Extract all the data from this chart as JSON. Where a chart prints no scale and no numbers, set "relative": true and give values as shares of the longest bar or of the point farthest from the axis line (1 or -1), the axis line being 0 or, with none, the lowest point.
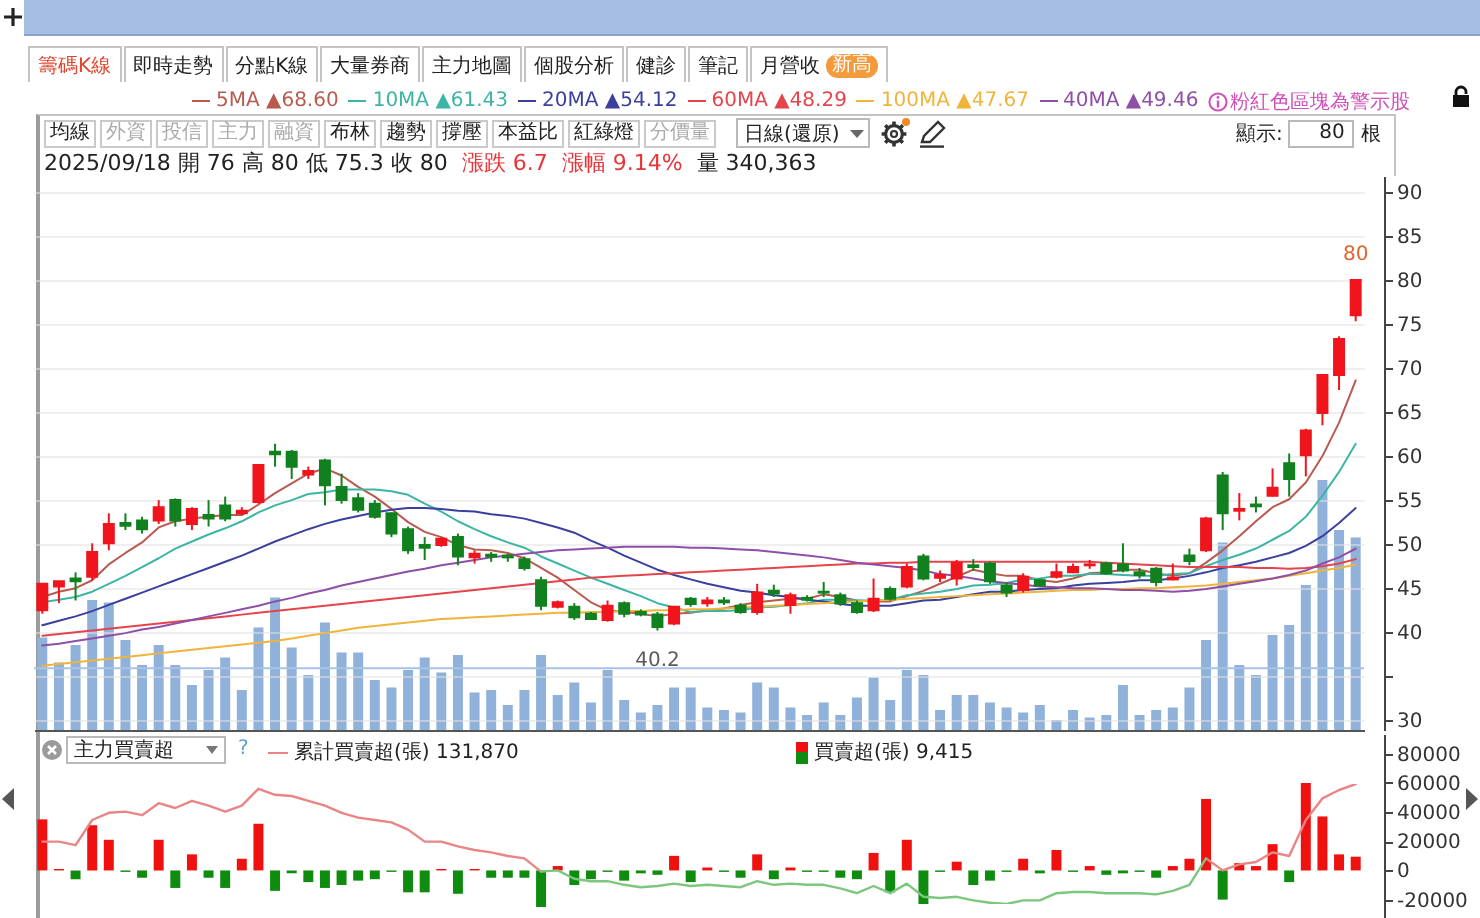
{
  "chart_data": [
    {
      "type": "other",
      "annotations": [
        "籌碼K線",
        "即時走勢",
        "分點K線",
        "大量券商",
        "主力地圖",
        "個股分析",
        "健診",
        "筆記",
        "月營收",
        "新高",
        "均線",
        "外資",
        "投信",
        "主力",
        "融資",
        "布林",
        "趨勢",
        "撐壓",
        "本益比",
        "紅綠燈",
        "分價量",
        "日線(還原)",
        "顯示:",
        "80",
        "根"
      ]
    },
    {
      "type": "candlestick",
      "categories": [
        null,
        null,
        null,
        null,
        null,
        null,
        null,
        null,
        null,
        null,
        null,
        null,
        null,
        null,
        null,
        null,
        null,
        null,
        null,
        null,
        null,
        null,
        null,
        null,
        null,
        null,
        null,
        null,
        null,
        null,
        null,
        null,
        null,
        null,
        null,
        null,
        null,
        null,
        null,
        null,
        null,
        null,
        null,
        null,
        null,
        null,
        null,
        null,
        null,
        null,
        null,
        null,
        null,
        null,
        null,
        null,
        null,
        null,
        null,
        null,
        null,
        null,
        null,
        null,
        null,
        null,
        null,
        null,
        null,
        null,
        null,
        null,
        null,
        null,
        null,
        null,
        null,
        null,
        null,
        null
      ],
      "ohlc": [
        [
          42.5,
          45.6,
          42.1,
          45.5
        ],
        [
          45.2,
          45.8,
          43.3,
          45.8
        ],
        [
          46.1,
          46.8,
          43.6,
          45.8
        ],
        [
          46.3,
          50.1,
          45.9,
          49.1
        ],
        [
          50.1,
          53.5,
          49.3,
          52.3
        ],
        [
          52.4,
          53.5,
          51.6,
          52.1
        ],
        [
          52.7,
          53.1,
          51.2,
          51.7
        ],
        [
          52.7,
          55.0,
          52.3,
          54.2
        ],
        [
          55.0,
          55.2,
          52.0,
          52.7
        ],
        [
          52.3,
          54.2,
          51.6,
          54.0
        ],
        [
          53.3,
          55.0,
          52.0,
          52.9
        ],
        [
          54.4,
          55.4,
          52.6,
          52.9
        ],
        [
          53.5,
          54.2,
          53.3,
          53.8
        ],
        [
          54.8,
          59.0,
          54.6,
          59.0
        ],
        [
          60.5,
          61.4,
          58.8,
          60.2
        ],
        [
          60.5,
          60.7,
          57.4,
          58.8
        ],
        [
          57.9,
          58.8,
          57.4,
          58.3
        ],
        [
          59.5,
          59.7,
          54.4,
          56.7
        ],
        [
          56.5,
          58.0,
          54.6,
          55.0
        ],
        [
          55.2,
          55.8,
          53.6,
          53.9
        ],
        [
          54.6,
          55.0,
          52.9,
          53.1
        ],
        [
          53.5,
          53.6,
          50.8,
          51.2
        ],
        [
          51.7,
          52.0,
          48.9,
          49.3
        ],
        [
          49.9,
          50.8,
          48.2,
          49.6
        ],
        [
          49.9,
          50.8,
          49.7,
          50.6
        ],
        [
          50.8,
          51.2,
          47.6,
          48.6
        ],
        [
          48.5,
          49.3,
          47.8,
          48.9
        ],
        [
          48.8,
          49.1,
          48.0,
          48.6
        ],
        [
          48.7,
          48.9,
          48.0,
          48.5
        ],
        [
          48.3,
          48.6,
          47.0,
          47.3
        ],
        [
          45.9,
          46.3,
          42.5,
          43.0
        ],
        [
          42.9,
          43.6,
          42.7,
          43.4
        ],
        [
          42.9,
          43.3,
          41.4,
          41.7
        ],
        [
          42.1,
          42.3,
          41.4,
          41.5
        ],
        [
          41.4,
          43.6,
          41.2,
          43.0
        ],
        [
          43.3,
          43.5,
          41.7,
          42.1
        ],
        [
          42.3,
          42.6,
          41.8,
          42.0
        ],
        [
          42.0,
          42.3,
          40.2,
          40.6
        ],
        [
          41.0,
          43.0,
          40.8,
          42.9
        ],
        [
          43.8,
          44.0,
          42.9,
          43.2
        ],
        [
          43.3,
          44.0,
          42.9,
          43.6
        ],
        [
          43.6,
          44.0,
          43.1,
          43.4
        ],
        [
          43.0,
          43.3,
          42.1,
          42.3
        ],
        [
          42.3,
          45.5,
          42.0,
          44.5
        ],
        [
          44.7,
          45.4,
          44.0,
          44.4
        ],
        [
          43.1,
          44.5,
          42.1,
          44.2
        ],
        [
          43.9,
          44.2,
          43.5,
          43.7
        ],
        [
          44.6,
          45.7,
          44.0,
          44.5
        ],
        [
          44.2,
          44.5,
          43.0,
          43.3
        ],
        [
          43.3,
          43.6,
          42.1,
          42.3
        ],
        [
          42.5,
          46.1,
          42.3,
          43.8
        ],
        [
          44.9,
          45.2,
          43.6,
          43.8
        ],
        [
          45.2,
          47.8,
          45.0,
          47.4
        ],
        [
          48.6,
          48.9,
          45.9,
          46.1
        ],
        [
          46.2,
          47.0,
          45.7,
          46.5
        ],
        [
          46.1,
          48.2,
          45.3,
          47.9
        ],
        [
          47.6,
          48.3,
          47.0,
          47.4
        ],
        [
          47.8,
          48.0,
          45.5,
          45.8
        ],
        [
          45.3,
          45.7,
          44.0,
          44.5
        ],
        [
          44.8,
          46.7,
          44.5,
          46.3
        ],
        [
          45.9,
          46.1,
          45.2,
          45.3
        ],
        [
          46.3,
          47.8,
          46.1,
          46.8
        ],
        [
          46.8,
          47.8,
          46.7,
          47.4
        ],
        [
          47.6,
          48.2,
          47.2,
          47.7
        ],
        [
          47.8,
          48.0,
          46.5,
          46.7
        ],
        [
          47.7,
          50.1,
          46.8,
          47.0
        ],
        [
          46.8,
          47.3,
          46.1,
          46.5
        ],
        [
          47.2,
          47.4,
          45.2,
          45.7
        ],
        [
          46.0,
          47.8,
          45.9,
          46.2
        ],
        [
          48.7,
          49.5,
          47.6,
          48.1
        ],
        [
          49.3,
          53.1,
          49.1,
          52.9
        ],
        [
          57.8,
          58.2,
          51.6,
          53.5
        ],
        [
          53.8,
          55.8,
          52.7,
          54.0
        ],
        [
          54.5,
          55.4,
          53.6,
          54.3
        ],
        [
          55.5,
          58.6,
          55.4,
          56.4
        ],
        [
          59.2,
          60.3,
          55.4,
          57.4
        ],
        [
          60.1,
          63.1,
          57.7,
          62.9
        ],
        [
          64.9,
          69.2,
          63.5,
          69.2
        ],
        [
          69.2,
          73.6,
          67.5,
          73.3
        ],
        [
          76,
          80,
          75.3,
          80
        ]
      ],
      "colors": [
        "#f0141c",
        "#f0141c",
        "#11801f",
        "#f0141c",
        "#f0141c",
        "#11801f",
        "#11801f",
        "#f0141c",
        "#11801f",
        "#f0141c",
        "#11801f",
        "#11801f",
        "#f0141c",
        "#f0141c",
        "#11801f",
        "#11801f",
        "#f0141c",
        "#11801f",
        "#11801f",
        "#11801f",
        "#11801f",
        "#11801f",
        "#11801f",
        "#11801f",
        "#f0141c",
        "#11801f",
        "#f0141c",
        "#11801f",
        "#11801f",
        "#11801f",
        "#11801f",
        "#f0141c",
        "#11801f",
        "#11801f",
        "#f0141c",
        "#11801f",
        "#11801f",
        "#11801f",
        "#f0141c",
        "#11801f",
        "#f0141c",
        "#11801f",
        "#11801f",
        "#f0141c",
        "#11801f",
        "#f0141c",
        "#11801f",
        "#11801f",
        "#11801f",
        "#11801f",
        "#f0141c",
        "#11801f",
        "#f0141c",
        "#11801f",
        "#f0141c",
        "#f0141c",
        "#11801f",
        "#11801f",
        "#11801f",
        "#f0141c",
        "#11801f",
        "#f0141c",
        "#f0141c",
        "#f0141c",
        "#11801f",
        "#11801f",
        "#11801f",
        "#11801f",
        "#f0141c",
        "#11801f",
        "#f0141c",
        "#11801f",
        "#f0141c",
        "#11801f",
        "#f0141c",
        "#11801f",
        "#f0141c",
        "#f0141c",
        "#f0141c",
        "#f0141c"
      ],
      "series": [
        {
          "name": "5MA ▲68.60",
          "type": "line",
          "color": "#b95a4f",
          "values": [
            44.0,
            44.6,
            45.0,
            45.9,
            47.7,
            49.0,
            50.2,
            51.9,
            52.6,
            52.9,
            53.1,
            53.3,
            53.3,
            54.5,
            55.8,
            56.9,
            58.0,
            58.6,
            57.8,
            56.5,
            55.4,
            54.0,
            52.5,
            51.4,
            50.8,
            49.9,
            49.4,
            49.3,
            49.0,
            48.4,
            47.3,
            46.2,
            44.8,
            43.4,
            42.5,
            42.3,
            42.1,
            41.8,
            42.1,
            42.2,
            42.5,
            42.7,
            43.1,
            43.4,
            43.6,
            43.8,
            43.8,
            44.3,
            44.0,
            43.6,
            43.5,
            43.5,
            44.1,
            44.7,
            45.5,
            46.3,
            47.1,
            46.7,
            46.4,
            46.4,
            45.9,
            45.7,
            46.1,
            46.7,
            46.8,
            47.1,
            47.1,
            46.7,
            46.4,
            46.7,
            47.9,
            49.3,
            50.9,
            52.6,
            54.2,
            55.1,
            57.0,
            60.0,
            63.8,
            68.6
          ]
        },
        {
          "name": "10MA ▲61.43",
          "type": "line",
          "color": "#3db5a5",
          "values": [
            43.4,
            43.7,
            44.0,
            44.6,
            45.5,
            46.4,
            47.4,
            48.4,
            49.5,
            50.3,
            51.1,
            51.8,
            52.6,
            53.6,
            54.4,
            55.0,
            55.7,
            55.9,
            56.2,
            56.2,
            56.2,
            56.0,
            55.6,
            54.6,
            53.7,
            52.6,
            51.7,
            50.9,
            50.2,
            49.6,
            48.6,
            47.8,
            47.0,
            46.2,
            45.5,
            44.8,
            44.1,
            43.3,
            42.8,
            42.3,
            42.4,
            42.4,
            42.5,
            42.8,
            42.9,
            43.1,
            43.3,
            43.7,
            43.7,
            43.6,
            43.6,
            43.7,
            44.2,
            44.4,
            44.6,
            44.9,
            45.3,
            45.4,
            45.6,
            46.0,
            46.1,
            46.4,
            46.4,
            46.6,
            46.6,
            46.5,
            46.4,
            46.4,
            46.6,
            46.7,
            47.5,
            48.2,
            48.8,
            49.5,
            50.5,
            51.5,
            53.1,
            55.5,
            58.2,
            61.4
          ]
        },
        {
          "name": "20MA ▲54.12",
          "type": "line",
          "color": "#3b3f9e",
          "values": [
            40.8,
            41.3,
            41.8,
            42.4,
            43.1,
            43.8,
            44.5,
            45.2,
            45.9,
            46.6,
            47.3,
            48.0,
            48.7,
            49.5,
            50.3,
            51.0,
            51.7,
            52.3,
            52.8,
            53.2,
            53.6,
            53.9,
            54.1,
            54.1,
            54.0,
            53.8,
            53.7,
            53.4,
            53.2,
            52.9,
            52.4,
            51.9,
            51.3,
            50.4,
            49.6,
            48.7,
            47.9,
            47.1,
            46.5,
            46.0,
            45.5,
            45.1,
            44.7,
            44.5,
            44.2,
            44.0,
            43.7,
            43.5,
            43.2,
            43.0,
            43.0,
            43.0,
            43.3,
            43.6,
            43.7,
            44.0,
            44.3,
            44.6,
            44.6,
            44.8,
            44.9,
            45.0,
            45.3,
            45.5,
            45.6,
            45.7,
            45.9,
            45.9,
            46.1,
            46.4,
            46.8,
            47.3,
            47.6,
            48.0,
            48.5,
            49.0,
            49.8,
            50.9,
            52.4,
            54.1
          ]
        },
        {
          "name": "60MA ▲48.29",
          "type": "line",
          "color": "#e5444c",
          "values": [
            39.6,
            39.8,
            40.0,
            40.2,
            40.4,
            40.6,
            40.8,
            41.0,
            41.2,
            41.4,
            41.6,
            41.8,
            42.0,
            42.2,
            42.4,
            42.6,
            42.8,
            43.0,
            43.2,
            43.4,
            43.6,
            43.8,
            44.0,
            44.2,
            44.4,
            44.6,
            44.8,
            45.0,
            45.2,
            45.4,
            45.6,
            45.8,
            46.0,
            46.2,
            46.3,
            46.4,
            46.5,
            46.6,
            46.7,
            46.8,
            46.9,
            47.0,
            47.1,
            47.2,
            47.3,
            47.4,
            47.5,
            47.6,
            47.7,
            47.8,
            47.8,
            47.9,
            47.9,
            48.0,
            48.0,
            48.0,
            48.0,
            48.0,
            48.0,
            48.0,
            48.0,
            48.0,
            48.0,
            48.0,
            47.9,
            47.8,
            47.7,
            47.6,
            47.5,
            47.4,
            47.4,
            47.4,
            47.4,
            47.3,
            47.3,
            47.2,
            47.3,
            47.5,
            47.8,
            48.3
          ]
        },
        {
          "name": "100MA ▲47.67",
          "type": "line",
          "color": "#f1b43a",
          "values": [
            36.2,
            36.4,
            36.6,
            36.8,
            37.0,
            37.2,
            37.4,
            37.6,
            37.8,
            38.0,
            38.2,
            38.4,
            38.6,
            38.8,
            39.0,
            39.3,
            39.6,
            39.9,
            40.2,
            40.5,
            40.7,
            40.9,
            41.1,
            41.3,
            41.5,
            41.6,
            41.7,
            41.8,
            41.9,
            42.0,
            42.1,
            42.2,
            42.2,
            42.3,
            42.3,
            42.4,
            42.4,
            42.5,
            42.5,
            42.6,
            42.6,
            42.7,
            42.8,
            42.9,
            43.0,
            43.1,
            43.2,
            43.3,
            43.4,
            43.5,
            43.6,
            43.7,
            43.8,
            43.9,
            44.0,
            44.1,
            44.2,
            44.3,
            44.4,
            44.5,
            44.6,
            44.7,
            44.8,
            44.8,
            44.9,
            44.9,
            45.0,
            45.0,
            45.1,
            45.2,
            45.3,
            45.5,
            45.7,
            45.9,
            46.1,
            46.4,
            46.7,
            47.0,
            47.3,
            47.7
          ]
        },
        {
          "name": "40MA ▲49.46",
          "type": "line",
          "color": "#8e4fa6",
          "values": [
            38.5,
            38.7,
            39.0,
            39.3,
            39.6,
            39.9,
            40.3,
            40.6,
            41.0,
            41.4,
            41.8,
            42.2,
            42.6,
            43.0,
            43.5,
            43.9,
            44.4,
            44.8,
            45.3,
            45.7,
            46.1,
            46.5,
            46.9,
            47.2,
            47.6,
            47.9,
            48.2,
            48.5,
            48.7,
            48.9,
            49.1,
            49.3,
            49.4,
            49.5,
            49.6,
            49.7,
            49.7,
            49.7,
            49.7,
            49.6,
            49.6,
            49.5,
            49.4,
            49.3,
            49.1,
            48.9,
            48.7,
            48.5,
            48.2,
            47.9,
            47.7,
            47.5,
            47.3,
            47.0,
            46.6,
            46.4,
            46.1,
            45.8,
            45.6,
            45.4,
            45.2,
            45.1,
            45.0,
            45.0,
            44.9,
            44.8,
            44.8,
            44.7,
            44.6,
            44.7,
            44.9,
            45.2,
            45.5,
            45.8,
            46.1,
            46.5,
            47.0,
            47.8,
            48.5,
            49.5
          ]
        }
      ],
      "ylim": [
        28.9,
        91.8
      ],
      "yticks": [
        30,
        {
          "value": 35,
          "label": null
        },
        40,
        45,
        50,
        55,
        60,
        65,
        70,
        75,
        80,
        85,
        90
      ],
      "grid": "y",
      "legend": "top",
      "tick_labels": "y",
      "ref_lines": [
        {
          "axis": "y",
          "value": 35.9,
          "color": "#a9c2e6"
        }
      ],
      "annotations": [
        "2025/09/18 開 76 高 80 低 75.3 收 80",
        "漲跌 6.7",
        "漲幅 9.14%",
        "量 340,363",
        "粉紅色區塊為警示股",
        {
          "text": "80",
          "y": 80
        },
        {
          "text": "40.2",
          "y": 40.2
        }
      ]
    },
    {
      "type": "bar",
      "relative": true,
      "tick_labels": false,
      "categories": [
        null,
        null,
        null,
        null,
        null,
        null,
        null,
        null,
        null,
        null,
        null,
        null,
        null,
        null,
        null,
        null,
        null,
        null,
        null,
        null,
        null,
        null,
        null,
        null,
        null,
        null,
        null,
        null,
        null,
        null,
        null,
        null,
        null,
        null,
        null,
        null,
        null,
        null,
        null,
        null,
        null,
        null,
        null,
        null,
        null,
        null,
        null,
        null,
        null,
        null,
        null,
        null,
        null,
        null,
        null,
        null,
        null,
        null,
        null,
        null,
        null,
        null,
        null,
        null,
        null,
        null,
        null,
        null,
        null,
        null,
        null,
        null,
        null,
        null,
        null,
        null,
        null,
        null,
        null,
        null
      ],
      "color": "#8fb1da",
      "values": [
        0.37,
        0.27,
        0.34,
        0.52,
        0.51,
        0.36,
        0.26,
        0.34,
        0.26,
        0.18,
        0.24,
        0.29,
        0.16,
        0.41,
        0.53,
        0.33,
        0.22,
        0.43,
        0.31,
        0.31,
        0.2,
        0.17,
        0.24,
        0.29,
        0.23,
        0.3,
        0.15,
        0.16,
        0.1,
        0.16,
        0.3,
        0.14,
        0.19,
        0.11,
        0.24,
        0.12,
        0.07,
        0.1,
        0.17,
        0.17,
        0.09,
        0.08,
        0.07,
        0.19,
        0.17,
        0.09,
        0.06,
        0.11,
        0.06,
        0.13,
        0.21,
        0.12,
        0.24,
        0.22,
        0.08,
        0.14,
        0.14,
        0.11,
        0.09,
        0.07,
        0.1,
        0.04,
        0.08,
        0.05,
        0.06,
        0.18,
        0.06,
        0.08,
        0.09,
        0.17,
        0.36,
        0.75,
        0.26,
        0.22,
        0.38,
        0.42,
        0.58,
        1,
        0.8,
        0.77
      ]
    },
    {
      "type": "bar",
      "categories": [
        null,
        null,
        null,
        null,
        null,
        null,
        null,
        null,
        null,
        null,
        null,
        null,
        null,
        null,
        null,
        null,
        null,
        null,
        null,
        null,
        null,
        null,
        null,
        null,
        null,
        null,
        null,
        null,
        null,
        null,
        null,
        null,
        null,
        null,
        null,
        null,
        null,
        null,
        null,
        null,
        null,
        null,
        null,
        null,
        null,
        null,
        null,
        null,
        null,
        null,
        null,
        null,
        null,
        null,
        null,
        null,
        null,
        null,
        null,
        null,
        null,
        null,
        null,
        null,
        null,
        null,
        null,
        null,
        null,
        null,
        null,
        null,
        null,
        null,
        null,
        null,
        null,
        null,
        null,
        null
      ],
      "series": [
        {
          "name": "買賣超(張) 9,415",
          "colors": [
            "#ef1010",
            "#ef1010",
            "#0f8c0f",
            "#ef1010",
            "#ef1010",
            "#0f8c0f",
            "#0f8c0f",
            "#ef1010",
            "#0f8c0f",
            "#ef1010",
            "#0f8c0f",
            "#0f8c0f",
            "#ef1010",
            "#ef1010",
            "#0f8c0f",
            "#0f8c0f",
            "#0f8c0f",
            "#0f8c0f",
            "#0f8c0f",
            "#0f8c0f",
            "#0f8c0f",
            "#0f8c0f",
            "#0f8c0f",
            "#0f8c0f",
            "#ef1010",
            "#0f8c0f",
            "#ef1010",
            "#0f8c0f",
            "#0f8c0f",
            "#0f8c0f",
            "#0f8c0f",
            "#ef1010",
            "#0f8c0f",
            "#0f8c0f",
            "#0f8c0f",
            "#0f8c0f",
            "#0f8c0f",
            "#0f8c0f",
            "#ef1010",
            "#0f8c0f",
            "#ef1010",
            "#0f8c0f",
            "#0f8c0f",
            "#ef1010",
            "#0f8c0f",
            "#ef1010",
            "#0f8c0f",
            "#0f8c0f",
            "#0f8c0f",
            "#0f8c0f",
            "#ef1010",
            "#0f8c0f",
            "#ef1010",
            "#0f8c0f",
            "#0f8c0f",
            "#ef1010",
            "#0f8c0f",
            "#0f8c0f",
            "#0f8c0f",
            "#ef1010",
            "#0f8c0f",
            "#ef1010",
            "#0f8c0f",
            "#ef1010",
            "#0f8c0f",
            "#0f8c0f",
            "#0f8c0f",
            "#0f8c0f",
            "#ef1010",
            "#ef1010",
            "#ef1010",
            "#0f8c0f",
            "#ef1010",
            "#ef1010",
            "#ef1010",
            "#0f8c0f",
            "#ef1010",
            "#ef1010",
            "#ef1010",
            "#ef1010"
          ],
          "values": [
            35000,
            1000,
            -6000,
            31000,
            21000,
            -1000,
            -5000,
            21000,
            -12000,
            11000,
            -5000,
            -12000,
            8000,
            32000,
            -14000,
            -2000,
            -8000,
            -12000,
            -10000,
            -7000,
            -6000,
            -1000,
            -15000,
            -15000,
            1000,
            -16000,
            1000,
            -5000,
            -5000,
            -5000,
            -25000,
            3000,
            -10000,
            -6000,
            -1000,
            -7000,
            -2000,
            -3000,
            10000,
            -8000,
            2000,
            -1000,
            -5000,
            11000,
            -6000,
            2000,
            -1000,
            -1000,
            -5000,
            -6000,
            12000,
            -15000,
            21000,
            -23000,
            -1000,
            6000,
            -10000,
            -7000,
            -1000,
            8000,
            -2000,
            14000,
            -1000,
            3000,
            -3000,
            -2000,
            -1000,
            -5000,
            3000,
            8000,
            49000,
            -20000,
            5000,
            3000,
            18000,
            -8000,
            60000,
            37000,
            11000,
            9415
          ]
        }
      ],
      "ylim": [
        -32600,
        93500
      ],
      "yticks": [
        -20000,
        0,
        20000,
        40000,
        60000,
        80000
      ],
      "legend": "top",
      "tick_labels": "y",
      "annotations": [
        "主力買賣超",
        "?"
      ]
    },
    {
      "type": "line",
      "relative": true,
      "tick_labels": false,
      "legend": "top",
      "categories": [
        null,
        null,
        null,
        null,
        null,
        null,
        null,
        null,
        null,
        null,
        null,
        null,
        null,
        null,
        null,
        null,
        null,
        null,
        null,
        null,
        null,
        null,
        null,
        null,
        null,
        null,
        null,
        null,
        null,
        null,
        null,
        null,
        null,
        null,
        null,
        null,
        null,
        null,
        null,
        null,
        null,
        null,
        null,
        null,
        null,
        null,
        null,
        null,
        null,
        null,
        null,
        null,
        null,
        null,
        null,
        null,
        null,
        null,
        null,
        null,
        null,
        null,
        null,
        null,
        null,
        null,
        null,
        null,
        null,
        null,
        null,
        null,
        null,
        null,
        null,
        null,
        null,
        null,
        null,
        null
      ],
      "series": [
        {
          "name": "累計買賣超(張) 131,870",
          "color": "#e98585",
          "values": [
            0.52,
            0.52,
            0.49,
            0.7,
            0.76,
            0.77,
            0.74,
            0.84,
            0.8,
            0.86,
            0.82,
            0.77,
            0.82,
            0.96,
            0.91,
            0.9,
            0.86,
            0.82,
            0.76,
            0.72,
            0.7,
            0.68,
            0.62,
            0.52,
            0.52,
            0.48,
            0.45,
            0.43,
            0.4,
            0.38,
            0.27,
            null,
            null,
            null,
            null,
            null,
            null,
            null,
            null,
            null,
            null,
            null,
            null,
            null,
            null,
            null,
            null,
            null,
            null,
            null,
            null,
            null,
            null,
            null,
            null,
            null,
            null,
            null,
            null,
            null,
            null,
            null,
            null,
            null,
            null,
            null,
            null,
            null,
            null,
            null,
            0.38,
            0.28,
            0.33,
            0.35,
            0.43,
            0.4,
            0.7,
            0.88,
            0.95,
            1
          ]
        },
        {
          "color": "#7dc67d",
          "values": [
            null,
            null,
            null,
            null,
            null,
            null,
            null,
            null,
            null,
            null,
            null,
            null,
            null,
            null,
            null,
            null,
            null,
            null,
            null,
            null,
            null,
            null,
            null,
            null,
            null,
            null,
            null,
            null,
            null,
            null,
            0.27,
            0.28,
            0.21,
            0.19,
            0.19,
            0.16,
            0.14,
            0.15,
            0.17,
            0.15,
            0.16,
            0.15,
            0.14,
            0.19,
            0.16,
            0.17,
            0.16,
            0.16,
            0.13,
            0.09,
            0.15,
            0.09,
            0.17,
            0.06,
            0.05,
            0.06,
            0.03,
            0.01,
            0,
            0.03,
            0.03,
            0.09,
            0.1,
            0.1,
            0.09,
            0.09,
            0.09,
            0.08,
            0.11,
            0.16,
            0.38,
            null,
            null,
            null,
            null,
            null,
            null,
            null,
            null,
            null
          ]
        }
      ]
    }
  ]
}
